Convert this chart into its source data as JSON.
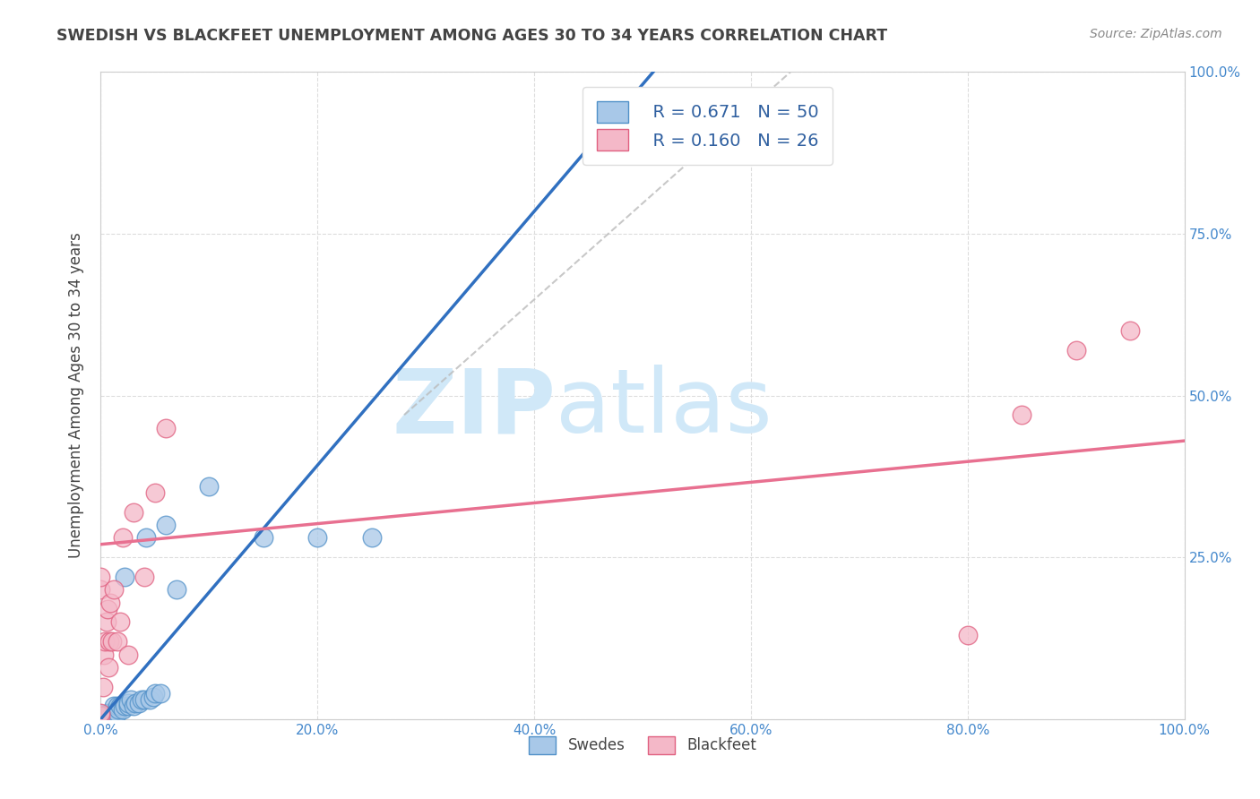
{
  "title": "SWEDISH VS BLACKFEET UNEMPLOYMENT AMONG AGES 30 TO 34 YEARS CORRELATION CHART",
  "source": "Source: ZipAtlas.com",
  "ylabel": "Unemployment Among Ages 30 to 34 years",
  "xlim": [
    0.0,
    1.0
  ],
  "ylim": [
    0.0,
    1.0
  ],
  "xticks": [
    0.0,
    0.2,
    0.4,
    0.6,
    0.8,
    1.0
  ],
  "yticks": [
    0.0,
    0.25,
    0.5,
    0.75,
    1.0
  ],
  "xticklabels": [
    "0.0%",
    "20.0%",
    "40.0%",
    "60.0%",
    "80.0%",
    "100.0%"
  ],
  "yticklabels_right": [
    "",
    "25.0%",
    "50.0%",
    "75.0%",
    "100.0%"
  ],
  "swedes_color": "#a8c8e8",
  "blackfeet_color": "#f4b8c8",
  "swedes_edge_color": "#5090c8",
  "blackfeet_edge_color": "#e06080",
  "swedes_line_color": "#3070c0",
  "blackfeet_line_color": "#e87090",
  "dash_color": "#bbbbbb",
  "legend_R_swedes": "R = 0.671",
  "legend_N_swedes": "N = 50",
  "legend_R_blackfeet": "R = 0.160",
  "legend_N_blackfeet": "N = 26",
  "watermark_zip": "ZIP",
  "watermark_atlas": "atlas",
  "watermark_color": "#d0e8f8",
  "swedes_x": [
    0.0,
    0.0,
    0.0,
    0.0,
    0.0,
    0.003,
    0.003,
    0.004,
    0.005,
    0.005,
    0.006,
    0.007,
    0.007,
    0.008,
    0.008,
    0.009,
    0.009,
    0.01,
    0.01,
    0.011,
    0.012,
    0.012,
    0.013,
    0.014,
    0.015,
    0.015,
    0.016,
    0.018,
    0.02,
    0.022,
    0.022,
    0.025,
    0.025,
    0.028,
    0.03,
    0.032,
    0.035,
    0.038,
    0.04,
    0.042,
    0.045,
    0.048,
    0.05,
    0.055,
    0.06,
    0.07,
    0.1,
    0.15,
    0.2,
    0.25
  ],
  "swedes_y": [
    0.0,
    0.0,
    0.0,
    0.005,
    0.008,
    0.0,
    0.005,
    0.005,
    0.0,
    0.005,
    0.005,
    0.005,
    0.01,
    0.005,
    0.01,
    0.005,
    0.01,
    0.005,
    0.01,
    0.01,
    0.01,
    0.02,
    0.01,
    0.01,
    0.01,
    0.02,
    0.015,
    0.02,
    0.015,
    0.02,
    0.22,
    0.02,
    0.025,
    0.03,
    0.02,
    0.025,
    0.025,
    0.03,
    0.03,
    0.28,
    0.03,
    0.035,
    0.04,
    0.04,
    0.3,
    0.2,
    0.36,
    0.28,
    0.28,
    0.28
  ],
  "blackfeet_x": [
    0.0,
    0.0,
    0.0,
    0.0,
    0.002,
    0.003,
    0.004,
    0.005,
    0.006,
    0.007,
    0.008,
    0.009,
    0.01,
    0.012,
    0.015,
    0.018,
    0.02,
    0.025,
    0.03,
    0.04,
    0.05,
    0.06,
    0.8,
    0.85,
    0.9,
    0.95
  ],
  "blackfeet_y": [
    0.005,
    0.01,
    0.2,
    0.22,
    0.05,
    0.1,
    0.12,
    0.15,
    0.17,
    0.08,
    0.12,
    0.18,
    0.12,
    0.2,
    0.12,
    0.15,
    0.28,
    0.1,
    0.32,
    0.22,
    0.35,
    0.45,
    0.13,
    0.47,
    0.57,
    0.6
  ],
  "swedes_line_x": [
    0.0,
    0.52
  ],
  "swedes_line_y": [
    0.0,
    1.02
  ],
  "blackfeet_line_x": [
    0.0,
    1.0
  ],
  "blackfeet_line_y": [
    0.27,
    0.43
  ],
  "dash_line_x": [
    0.28,
    0.65
  ],
  "dash_line_y": [
    0.47,
    1.02
  ],
  "background_color": "#ffffff",
  "grid_color": "#dddddd",
  "tick_color": "#4488cc",
  "title_color": "#444444",
  "source_color": "#888888",
  "ylabel_color": "#444444"
}
